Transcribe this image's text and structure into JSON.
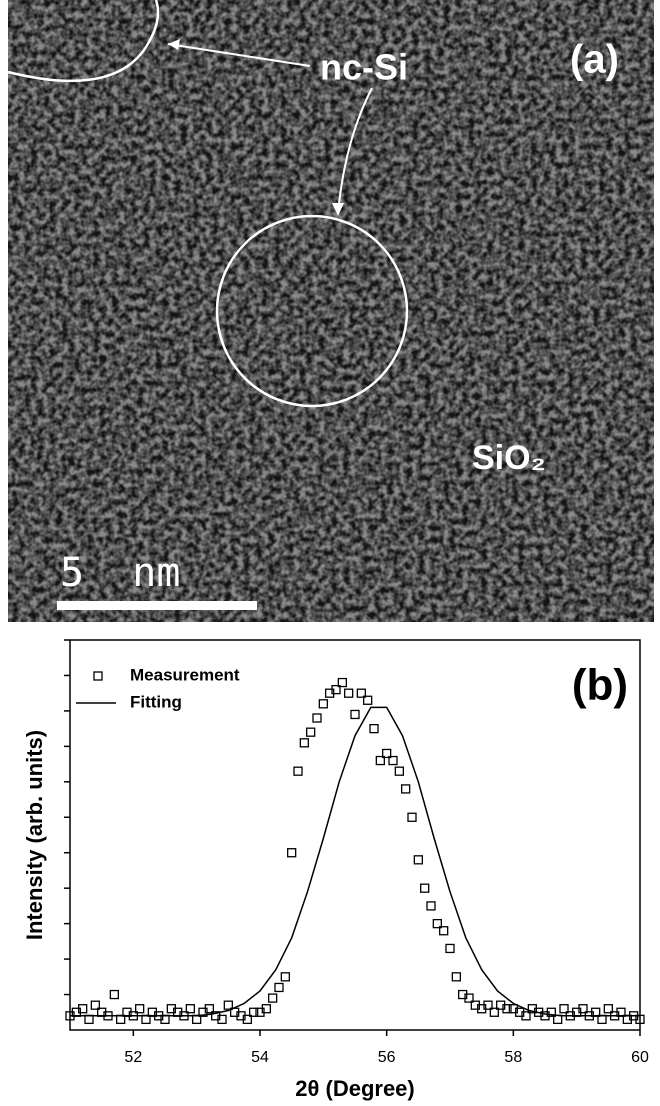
{
  "panel_a": {
    "label": "(a)",
    "particle_label": "nc-Si",
    "matrix_label": "SiO₂",
    "scale_label": "5  nm"
  },
  "chart_data": {
    "type": "scatter",
    "panel_label": "(b)",
    "x_label": "2θ (Degree)",
    "y_label": "Intensity (arb. units)",
    "xlim": [
      51,
      60
    ],
    "xticks": [
      52,
      54,
      56,
      58,
      60
    ],
    "ylim": [
      0,
      11
    ],
    "yticks": [
      1,
      2,
      3,
      4,
      5,
      6,
      7,
      8,
      9,
      10,
      11
    ],
    "legend": "upper left",
    "series": [
      {
        "name": "Measurement",
        "type": "scatter",
        "color": "#000000",
        "x": [
          51.0,
          51.1,
          51.2,
          51.3,
          51.4,
          51.5,
          51.6,
          51.7,
          51.8,
          51.9,
          52.0,
          52.1,
          52.2,
          52.3,
          52.4,
          52.5,
          52.6,
          52.7,
          52.8,
          52.9,
          53.0,
          53.1,
          53.2,
          53.3,
          53.4,
          53.5,
          53.6,
          53.7,
          53.8,
          53.9,
          54.0,
          54.1,
          54.2,
          54.3,
          54.4,
          54.5,
          54.6,
          54.7,
          54.8,
          54.9,
          55.0,
          55.1,
          55.2,
          55.3,
          55.4,
          55.5,
          55.6,
          55.7,
          55.8,
          55.9,
          56.0,
          56.1,
          56.2,
          56.3,
          56.4,
          56.5,
          56.6,
          56.7,
          56.8,
          56.9,
          57.0,
          57.1,
          57.2,
          57.3,
          57.4,
          57.5,
          57.6,
          57.7,
          57.8,
          57.9,
          58.0,
          58.1,
          58.2,
          58.3,
          58.4,
          58.5,
          58.6,
          58.7,
          58.8,
          58.9,
          59.0,
          59.1,
          59.2,
          59.3,
          59.4,
          59.5,
          59.6,
          59.7,
          59.8,
          59.9,
          60.0
        ],
        "values": [
          0.4,
          0.5,
          0.6,
          0.3,
          0.7,
          0.5,
          0.4,
          1.0,
          0.3,
          0.5,
          0.4,
          0.6,
          0.3,
          0.5,
          0.4,
          0.3,
          0.6,
          0.5,
          0.4,
          0.6,
          0.3,
          0.5,
          0.6,
          0.4,
          0.3,
          0.7,
          0.5,
          0.4,
          0.3,
          0.5,
          0.5,
          0.6,
          0.9,
          1.2,
          1.5,
          5.0,
          7.3,
          8.1,
          8.4,
          8.8,
          9.2,
          9.5,
          9.6,
          9.8,
          9.5,
          8.9,
          9.5,
          9.3,
          8.5,
          7.6,
          7.8,
          7.6,
          7.3,
          6.8,
          6.0,
          4.8,
          4.0,
          3.5,
          3.0,
          2.8,
          2.3,
          1.5,
          1.0,
          0.9,
          0.7,
          0.6,
          0.7,
          0.5,
          0.7,
          0.6,
          0.6,
          0.5,
          0.4,
          0.6,
          0.5,
          0.4,
          0.5,
          0.3,
          0.6,
          0.4,
          0.5,
          0.6,
          0.4,
          0.5,
          0.3,
          0.6,
          0.4,
          0.5,
          0.3,
          0.4,
          0.3
        ]
      },
      {
        "name": "Fitting",
        "type": "line",
        "color": "#000000",
        "x": [
          51.0,
          51.5,
          52.0,
          52.5,
          53.0,
          53.25,
          53.5,
          53.75,
          54.0,
          54.25,
          54.5,
          54.75,
          55.0,
          55.25,
          55.5,
          55.75,
          56.0,
          56.25,
          56.5,
          56.75,
          57.0,
          57.25,
          57.5,
          57.75,
          58.0,
          58.25,
          58.5,
          58.75,
          59.0,
          59.5,
          60.0
        ],
        "values": [
          0.4,
          0.4,
          0.4,
          0.4,
          0.4,
          0.45,
          0.55,
          0.75,
          1.1,
          1.7,
          2.6,
          3.9,
          5.4,
          7.0,
          8.3,
          9.1,
          9.1,
          8.3,
          7.0,
          5.4,
          3.9,
          2.6,
          1.7,
          1.1,
          0.75,
          0.55,
          0.45,
          0.4,
          0.4,
          0.4,
          0.4
        ]
      }
    ]
  }
}
